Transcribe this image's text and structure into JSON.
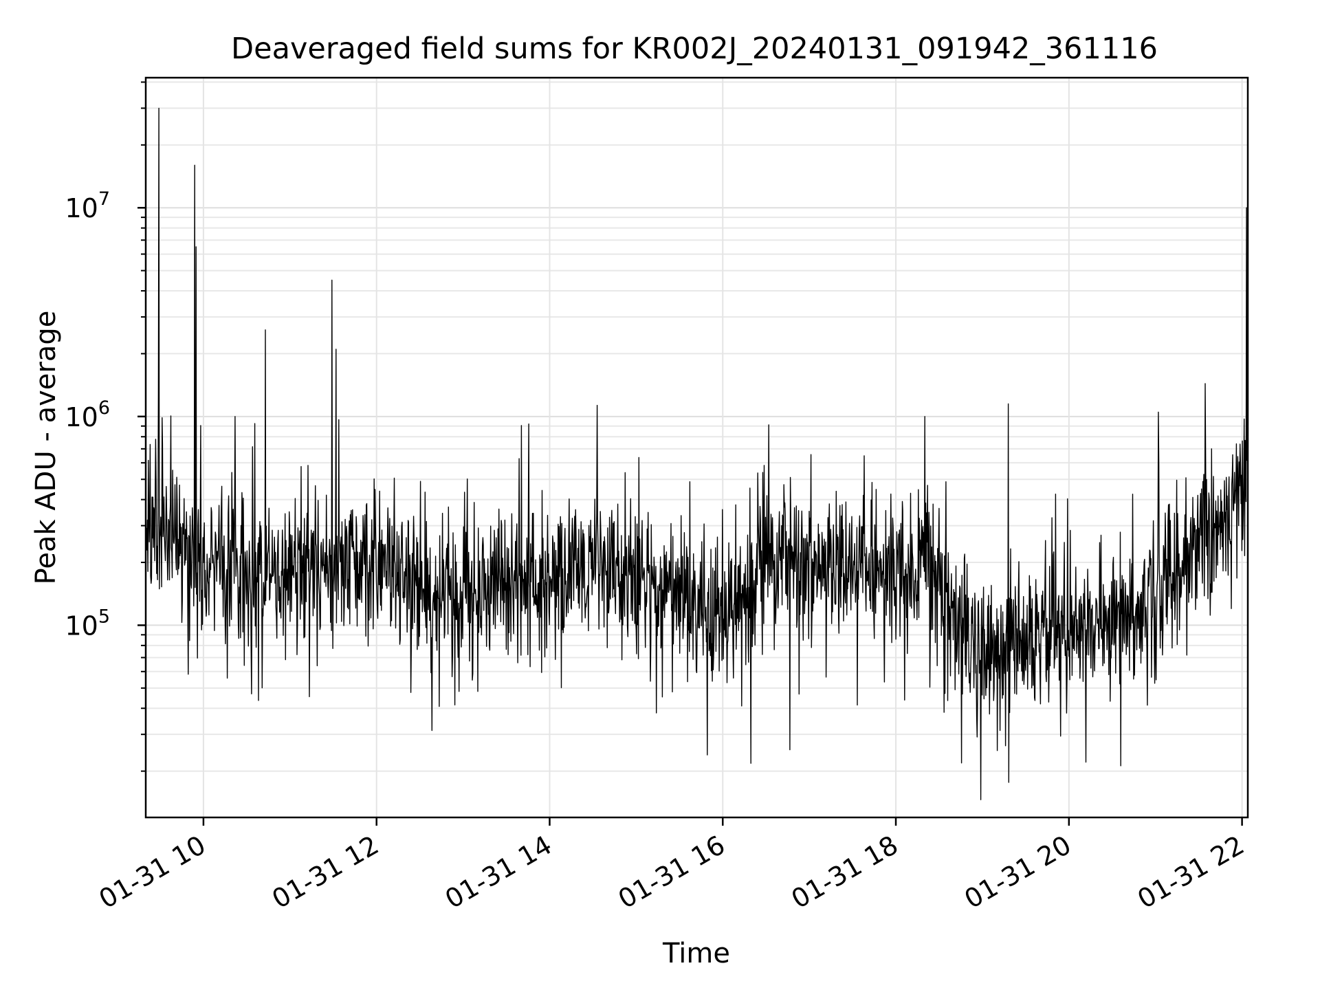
{
  "chart_data": {
    "type": "line",
    "title": "Deaveraged field sums for KR002J_20240131_091942_361116",
    "xlabel": "Time",
    "ylabel": "Peak ADU - average",
    "yscale": "log",
    "xlim": [
      "2024-01-31 09:20",
      "2024-01-31 22:04"
    ],
    "ylim": [
      12000,
      42000000
    ],
    "x_ticks": [
      "01-31 10",
      "01-31 12",
      "01-31 14",
      "01-31 16",
      "01-31 18",
      "01-31 20",
      "01-31 22"
    ],
    "y_ticks": [
      {
        "base": "10",
        "exp": "5",
        "value": 100000
      },
      {
        "base": "10",
        "exp": "6",
        "value": 1000000
      },
      {
        "base": "10",
        "exp": "7",
        "value": 10000000
      }
    ],
    "grid": true,
    "line_color": "#000000",
    "series_baseline": {
      "x": [
        "2024-01-31 09:20",
        "2024-01-31 09:40",
        "2024-01-31 10:00",
        "2024-01-31 10:30",
        "2024-01-31 11:00",
        "2024-01-31 11:30",
        "2024-01-31 12:00",
        "2024-01-31 12:30",
        "2024-01-31 13:00",
        "2024-01-31 13:30",
        "2024-01-31 14:00",
        "2024-01-31 14:30",
        "2024-01-31 15:00",
        "2024-01-31 15:30",
        "2024-01-31 16:00",
        "2024-01-31 16:30",
        "2024-01-31 17:00",
        "2024-01-31 17:30",
        "2024-01-31 18:00",
        "2024-01-31 18:30",
        "2024-01-31 18:45",
        "2024-01-31 19:00",
        "2024-01-31 19:30",
        "2024-01-31 20:00",
        "2024-01-31 20:30",
        "2024-01-31 21:00",
        "2024-01-31 21:20",
        "2024-01-31 21:40",
        "2024-01-31 22:04"
      ],
      "y": [
        300000,
        270000,
        190000,
        180000,
        170000,
        180000,
        200000,
        140000,
        130000,
        170000,
        160000,
        200000,
        150000,
        140000,
        110000,
        220000,
        190000,
        180000,
        190000,
        200000,
        85000,
        75000,
        90000,
        90000,
        100000,
        150000,
        200000,
        280000,
        550000
      ]
    },
    "spikes": {
      "x": [
        "2024-01-31 09:29",
        "2024-01-31 09:54",
        "2024-01-31 09:55",
        "2024-01-31 10:22",
        "2024-01-31 10:43",
        "2024-01-31 11:29",
        "2024-01-31 11:32",
        "2024-01-31 18:20",
        "2024-01-31 19:18",
        "2024-01-31 21:02",
        "2024-01-31 22:03"
      ],
      "y": [
        30000000,
        16000000,
        6500000,
        1000000,
        2600000,
        4500000,
        2100000,
        1000000,
        1150000,
        1050000,
        10000000
      ]
    }
  }
}
